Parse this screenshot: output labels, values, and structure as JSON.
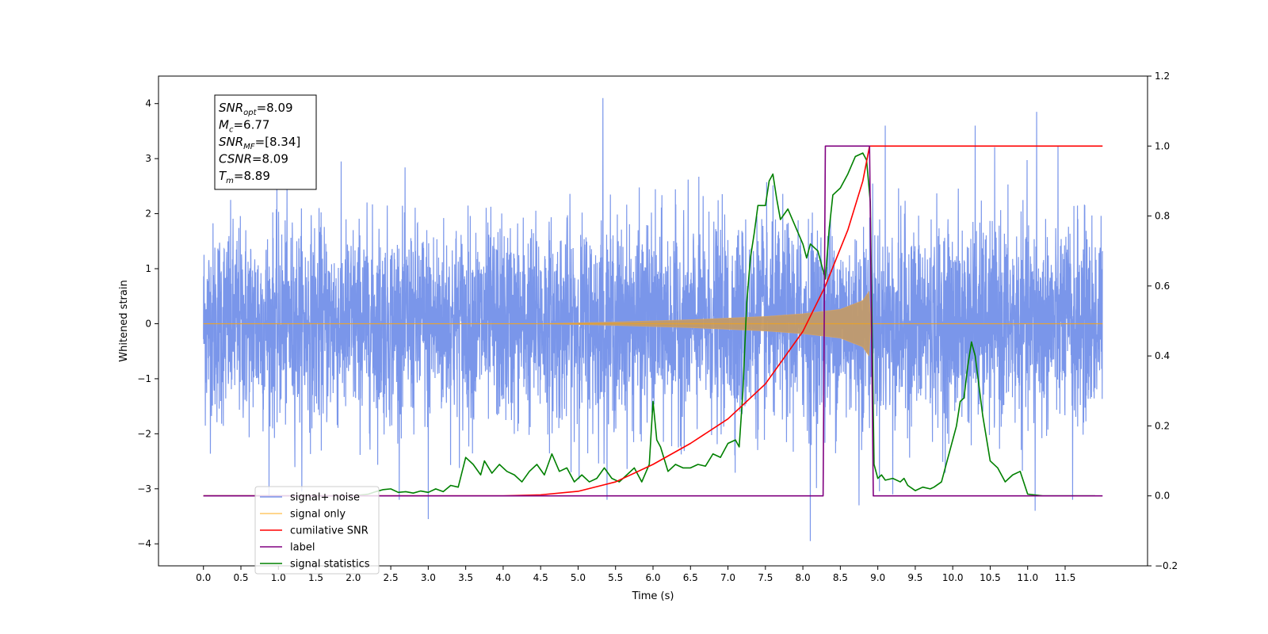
{
  "chart_data": {
    "type": "line",
    "xlabel": "Time (s)",
    "ylabel": "Whitened strain",
    "xlim": [
      -0.6,
      12.6
    ],
    "ylim": [
      -4.4,
      4.5
    ],
    "y2lim": [
      -0.2,
      1.2
    ],
    "grid": false,
    "legend_position": "lower-left",
    "x_ticks": [
      "0.0",
      "0.5",
      "1.0",
      "1.5",
      "2.0",
      "2.5",
      "3.0",
      "3.5",
      "4.0",
      "4.5",
      "5.0",
      "5.5",
      "6.0",
      "6.5",
      "7.0",
      "7.5",
      "8.0",
      "8.5",
      "9.0",
      "9.5",
      "10.0",
      "10.5",
      "11.0",
      "11.5"
    ],
    "y_ticks": [
      "-4",
      "-3",
      "-2",
      "-1",
      "0",
      "1",
      "2",
      "3",
      "4"
    ],
    "y2_ticks": [
      "-0.2",
      "0.0",
      "0.2",
      "0.4",
      "0.6",
      "0.8",
      "1.0",
      "1.2"
    ],
    "annotation": [
      {
        "sym": "SNR",
        "sub": "opt",
        "val": "=8.09"
      },
      {
        "sym": "M",
        "sub": "c",
        "val": "=6.77"
      },
      {
        "sym": "SNR",
        "sub": "MF",
        "val": "=[8.34]"
      },
      {
        "sym": "CSNR",
        "sub": "",
        "val": "=8.09"
      },
      {
        "sym": "T",
        "sub": "m",
        "val": "=8.89"
      }
    ],
    "series": [
      {
        "name": "signal+ noise",
        "color": "#4169e1",
        "axis": "left",
        "noise_std": 0.9,
        "x_range": [
          0.0,
          12.0
        ],
        "spikes": [
          [
            5.33,
            4.1
          ],
          [
            11.12,
            3.85
          ],
          [
            10.3,
            3.6
          ],
          [
            9.1,
            3.6
          ],
          [
            3.0,
            -3.55
          ],
          [
            8.1,
            -3.95
          ],
          [
            8.75,
            -3.3
          ],
          [
            11.1,
            -3.4
          ],
          [
            11.6,
            -3.2
          ],
          [
            9.2,
            -3.1
          ]
        ]
      },
      {
        "name": "signal only",
        "color": "#ffa500",
        "axis": "left",
        "envelope": [
          [
            0.0,
            0.0
          ],
          [
            4.5,
            0.0
          ],
          [
            5.5,
            0.03
          ],
          [
            6.5,
            0.07
          ],
          [
            7.5,
            0.13
          ],
          [
            8.0,
            0.18
          ],
          [
            8.5,
            0.26
          ],
          [
            8.8,
            0.42
          ],
          [
            8.89,
            0.6
          ],
          [
            8.9,
            0.0
          ],
          [
            12.0,
            0.0
          ]
        ]
      },
      {
        "name": "cumilative SNR",
        "color": "#ff0000",
        "axis": "right",
        "points": [
          [
            0.0,
            0.0
          ],
          [
            4.0,
            0.0
          ],
          [
            4.5,
            0.003
          ],
          [
            5.0,
            0.013
          ],
          [
            5.5,
            0.04
          ],
          [
            6.0,
            0.09
          ],
          [
            6.5,
            0.15
          ],
          [
            7.0,
            0.22
          ],
          [
            7.5,
            0.32
          ],
          [
            8.0,
            0.47
          ],
          [
            8.3,
            0.6
          ],
          [
            8.6,
            0.76
          ],
          [
            8.8,
            0.9
          ],
          [
            8.89,
            1.0
          ],
          [
            12.0,
            1.0
          ]
        ]
      },
      {
        "name": "label",
        "color": "#800080",
        "axis": "right",
        "points": [
          [
            0.0,
            0.0
          ],
          [
            8.27,
            0.0
          ],
          [
            8.3,
            1.0
          ],
          [
            8.89,
            1.0
          ],
          [
            8.94,
            0.0
          ],
          [
            12.0,
            0.0
          ]
        ]
      },
      {
        "name": "signal statistics",
        "color": "#008000",
        "axis": "right",
        "points": [
          [
            0.0,
            0.0
          ],
          [
            2.0,
            0.0
          ],
          [
            2.2,
            0.005
          ],
          [
            2.3,
            0.012
          ],
          [
            2.4,
            0.018
          ],
          [
            2.5,
            0.02
          ],
          [
            2.6,
            0.01
          ],
          [
            2.7,
            0.012
          ],
          [
            2.8,
            0.008
          ],
          [
            2.9,
            0.014
          ],
          [
            3.0,
            0.01
          ],
          [
            3.1,
            0.02
          ],
          [
            3.2,
            0.012
          ],
          [
            3.3,
            0.03
          ],
          [
            3.4,
            0.025
          ],
          [
            3.5,
            0.11
          ],
          [
            3.6,
            0.09
          ],
          [
            3.7,
            0.06
          ],
          [
            3.75,
            0.1
          ],
          [
            3.85,
            0.065
          ],
          [
            3.95,
            0.09
          ],
          [
            4.05,
            0.07
          ],
          [
            4.15,
            0.06
          ],
          [
            4.25,
            0.04
          ],
          [
            4.35,
            0.07
          ],
          [
            4.45,
            0.09
          ],
          [
            4.55,
            0.06
          ],
          [
            4.65,
            0.12
          ],
          [
            4.75,
            0.07
          ],
          [
            4.85,
            0.08
          ],
          [
            4.95,
            0.04
          ],
          [
            5.05,
            0.06
          ],
          [
            5.15,
            0.04
          ],
          [
            5.25,
            0.05
          ],
          [
            5.35,
            0.08
          ],
          [
            5.45,
            0.05
          ],
          [
            5.55,
            0.04
          ],
          [
            5.65,
            0.06
          ],
          [
            5.75,
            0.08
          ],
          [
            5.85,
            0.04
          ],
          [
            5.95,
            0.09
          ],
          [
            6.0,
            0.27
          ],
          [
            6.05,
            0.16
          ],
          [
            6.1,
            0.14
          ],
          [
            6.2,
            0.07
          ],
          [
            6.3,
            0.09
          ],
          [
            6.4,
            0.08
          ],
          [
            6.5,
            0.08
          ],
          [
            6.6,
            0.09
          ],
          [
            6.7,
            0.085
          ],
          [
            6.8,
            0.12
          ],
          [
            6.9,
            0.11
          ],
          [
            7.0,
            0.15
          ],
          [
            7.1,
            0.16
          ],
          [
            7.15,
            0.14
          ],
          [
            7.2,
            0.3
          ],
          [
            7.25,
            0.55
          ],
          [
            7.3,
            0.68
          ],
          [
            7.35,
            0.75
          ],
          [
            7.4,
            0.83
          ],
          [
            7.5,
            0.83
          ],
          [
            7.55,
            0.9
          ],
          [
            7.6,
            0.92
          ],
          [
            7.65,
            0.85
          ],
          [
            7.7,
            0.79
          ],
          [
            7.8,
            0.82
          ],
          [
            7.9,
            0.77
          ],
          [
            8.0,
            0.72
          ],
          [
            8.05,
            0.68
          ],
          [
            8.1,
            0.72
          ],
          [
            8.2,
            0.7
          ],
          [
            8.3,
            0.62
          ],
          [
            8.35,
            0.76
          ],
          [
            8.4,
            0.86
          ],
          [
            8.5,
            0.88
          ],
          [
            8.6,
            0.92
          ],
          [
            8.7,
            0.97
          ],
          [
            8.8,
            0.98
          ],
          [
            8.85,
            0.96
          ],
          [
            8.9,
            0.84
          ],
          [
            8.95,
            0.09
          ],
          [
            9.0,
            0.05
          ],
          [
            9.05,
            0.06
          ],
          [
            9.1,
            0.045
          ],
          [
            9.2,
            0.05
          ],
          [
            9.3,
            0.04
          ],
          [
            9.35,
            0.05
          ],
          [
            9.4,
            0.03
          ],
          [
            9.5,
            0.015
          ],
          [
            9.6,
            0.025
          ],
          [
            9.7,
            0.02
          ],
          [
            9.75,
            0.025
          ],
          [
            9.85,
            0.04
          ],
          [
            9.95,
            0.12
          ],
          [
            10.05,
            0.2
          ],
          [
            10.1,
            0.27
          ],
          [
            10.15,
            0.28
          ],
          [
            10.2,
            0.37
          ],
          [
            10.25,
            0.44
          ],
          [
            10.3,
            0.4
          ],
          [
            10.4,
            0.23
          ],
          [
            10.5,
            0.1
          ],
          [
            10.6,
            0.08
          ],
          [
            10.7,
            0.04
          ],
          [
            10.8,
            0.06
          ],
          [
            10.9,
            0.07
          ],
          [
            11.0,
            0.005
          ],
          [
            11.2,
            0.0
          ],
          [
            11.9,
            0.0
          ]
        ]
      }
    ]
  }
}
